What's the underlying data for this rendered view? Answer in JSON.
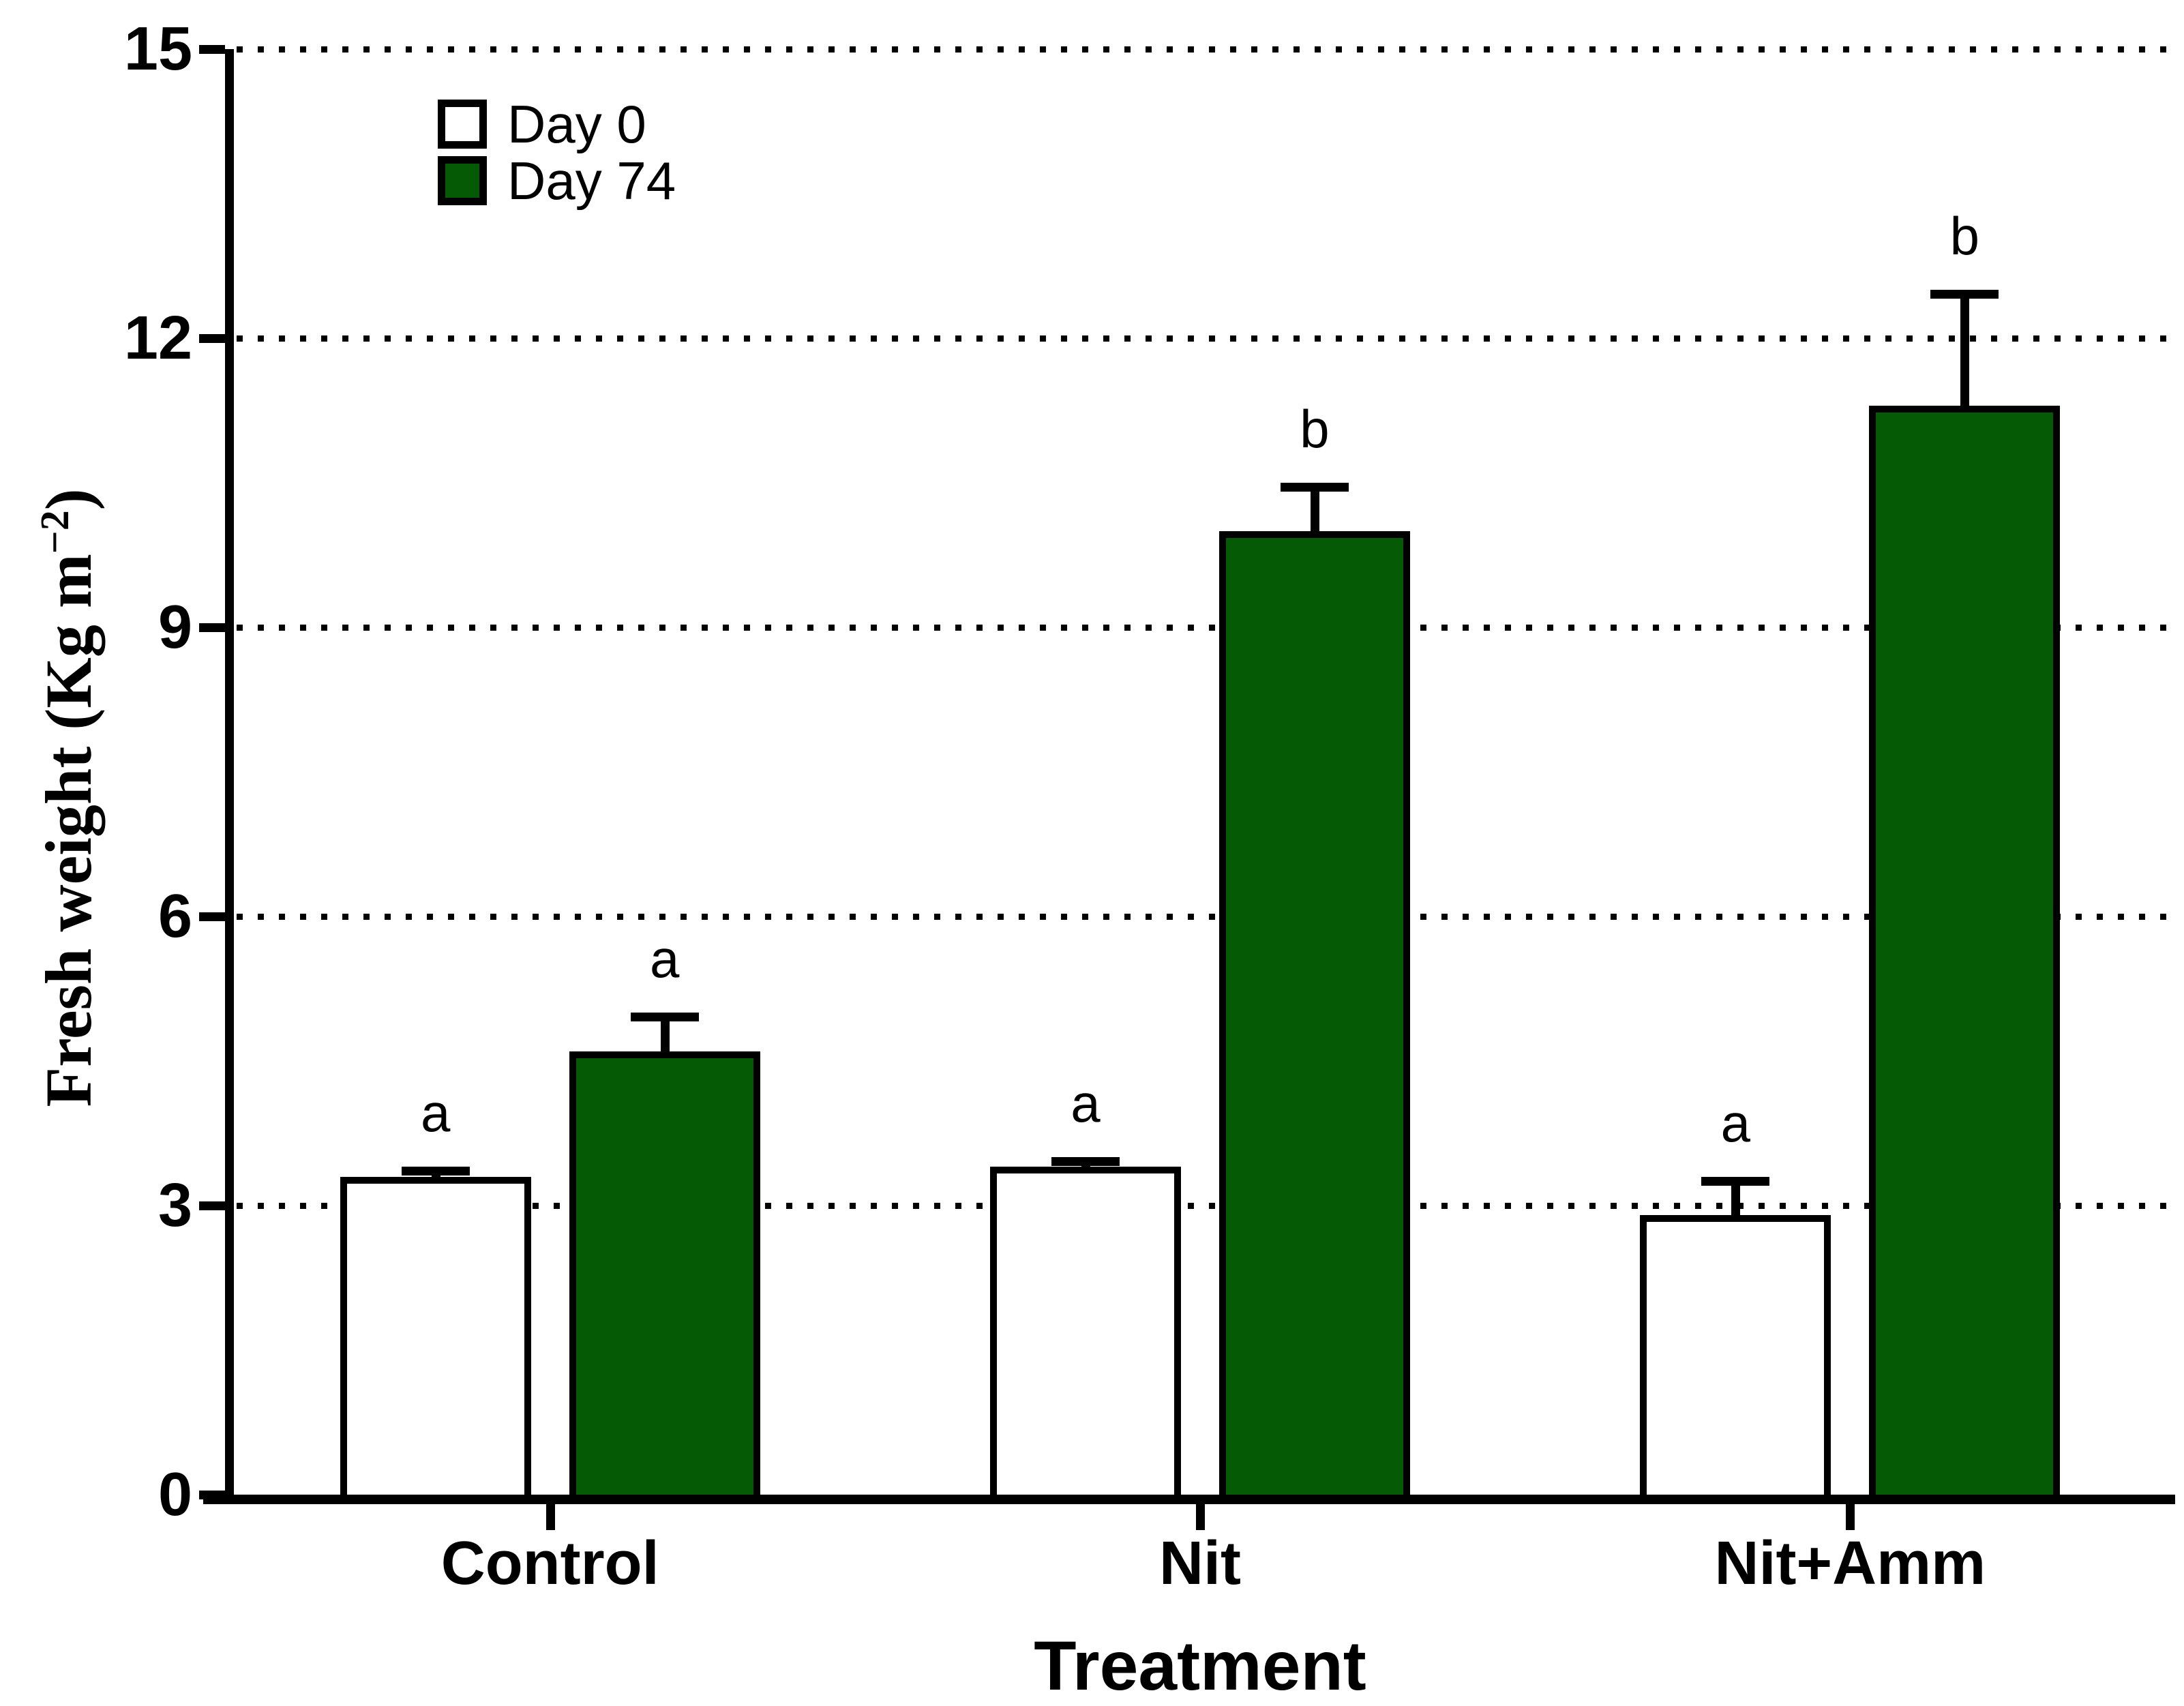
{
  "figure": {
    "x_axis_title": "Treatment",
    "y_axis_title": "Fresh weight (Kg m⁻²)",
    "y_axis_title_parts": {
      "prefix": "Fresh weight (Kg m",
      "superscript": "−2",
      "suffix": ")"
    }
  },
  "chart_data": {
    "type": "bar",
    "categories": [
      "Control",
      "Nit",
      "Nit+Amm"
    ],
    "series": [
      {
        "name": "Day 0",
        "fill": "#ffffff",
        "values": [
          3.3,
          3.4,
          2.9
        ],
        "errors": [
          0.1,
          0.1,
          0.4
        ],
        "sig_letters": [
          "a",
          "a",
          "a"
        ]
      },
      {
        "name": "Day 74",
        "fill": "#055a05",
        "values": [
          4.6,
          10.0,
          11.3
        ],
        "errors": [
          0.4,
          0.5,
          1.2
        ],
        "sig_letters": [
          "a",
          "b",
          "b"
        ]
      }
    ],
    "xlabel": "Treatment",
    "ylabel": "Fresh weight (Kg m⁻²)",
    "yticks": [
      0,
      3,
      6,
      9,
      12,
      15
    ],
    "ylim": [
      0,
      15
    ],
    "grid": "horizontal-dotted",
    "error_bars": "upper-only",
    "legend_position": "upper-left-inside"
  },
  "colors": {
    "bar_outline": "#000000",
    "axis": "#000000",
    "grid_dots": "#000000",
    "day0_fill": "#ffffff",
    "day74_fill": "#055a05"
  }
}
